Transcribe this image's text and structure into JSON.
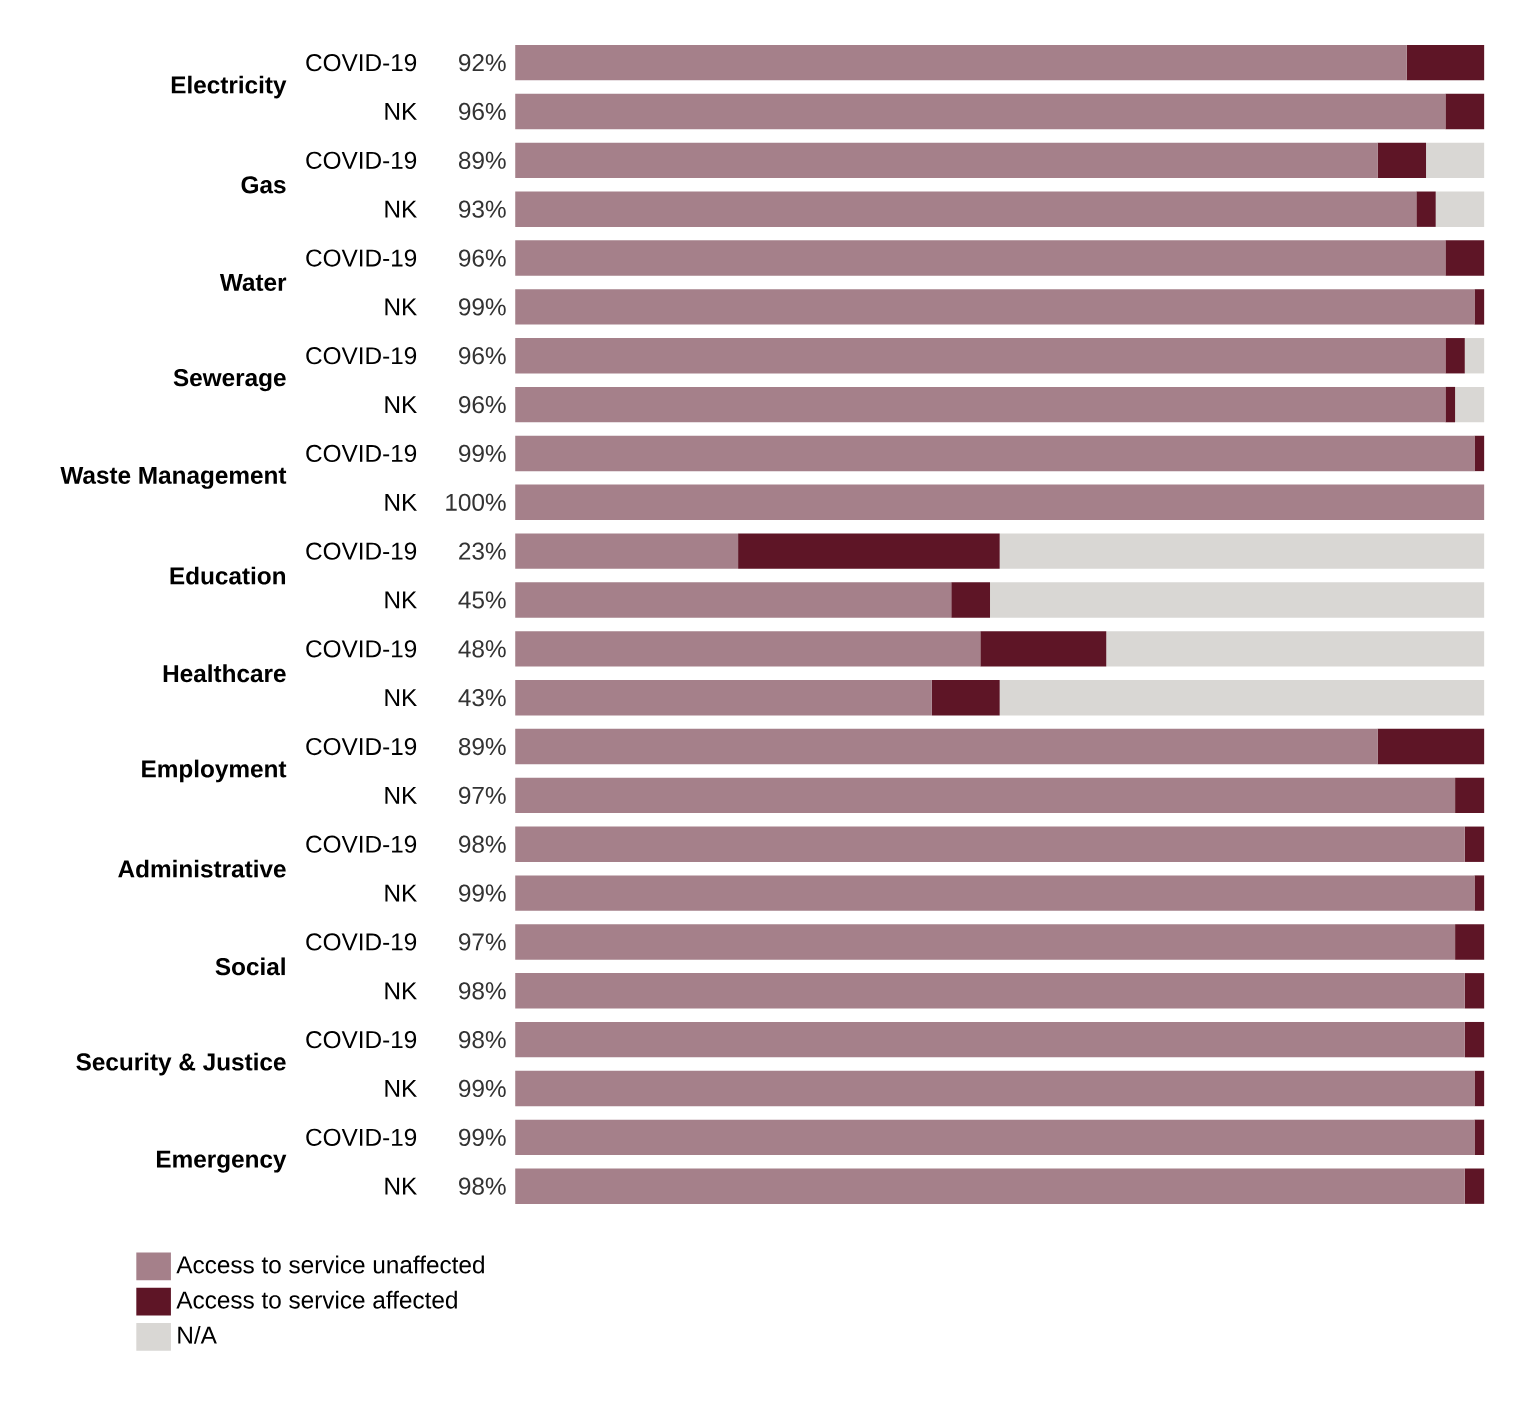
{
  "chart_data": {
    "type": "bar",
    "orientation": "horizontal",
    "stacked": true,
    "legend": "bottom left",
    "categories": [
      "COVID-19",
      "NK",
      "COVID-19",
      "NK",
      "COVID-19",
      "NK",
      "COVID-19",
      "NK",
      "COVID-19",
      "NK",
      "COVID-19",
      "NK",
      "COVID-19",
      "NK",
      "COVID-19",
      "NK",
      "COVID-19",
      "NK",
      "COVID-19",
      "NK",
      "COVID-19",
      "NK",
      "COVID-19",
      "NK"
    ],
    "annotations": [
      "Electricity",
      "Gas",
      "Water",
      "Sewerage",
      "Waste Management",
      "Education",
      "Healthcare",
      "Employment",
      "Administrative",
      "Social",
      "Security & Justice",
      "Emergency"
    ],
    "series": [
      {
        "name": "Access to service unaffected",
        "color": "#a5808a",
        "values": [
          92,
          96,
          89,
          93,
          96,
          99,
          96,
          96,
          99,
          100,
          23,
          45,
          48,
          43,
          89,
          97,
          98,
          99,
          97,
          98,
          98,
          99,
          99,
          98
        ],
        "value_labels": [
          "92%",
          "96%",
          "89%",
          "93%",
          "96%",
          "99%",
          "96%",
          "96%",
          "99%",
          "100%",
          "23%",
          "45%",
          "48%",
          "43%",
          "89%",
          "97%",
          "98%",
          "99%",
          "97%",
          "98%",
          "98%",
          "99%",
          "99%",
          "98%"
        ]
      },
      {
        "name": "Access to service affected",
        "color": "#5e1526",
        "values": [
          8,
          4,
          5,
          2,
          4,
          1,
          2,
          1,
          1,
          0,
          27,
          4,
          13,
          7,
          11,
          3,
          2,
          1,
          3,
          2,
          2,
          1,
          1,
          2
        ]
      },
      {
        "name": "N/A",
        "color": "#d9d7d4",
        "values": [
          0,
          0,
          6,
          5,
          0,
          0,
          2,
          3,
          0,
          0,
          50,
          51,
          39,
          50,
          0,
          0,
          0,
          0,
          0,
          0,
          0,
          0,
          0,
          0
        ]
      }
    ]
  }
}
